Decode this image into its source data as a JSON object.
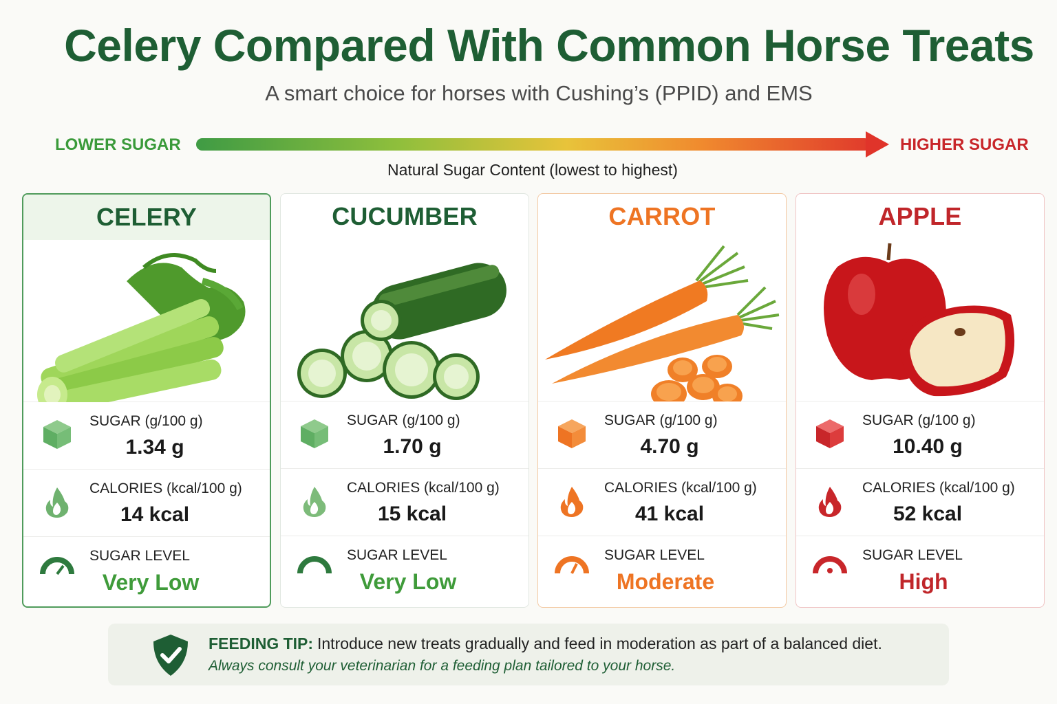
{
  "header": {
    "title": "Celery Compared With Common Horse Treats",
    "subtitle": "A smart choice for horses with Cushing’s (PPID) and EMS"
  },
  "scale": {
    "low_label": "LOWER SUGAR",
    "high_label": "HIGHER SUGAR",
    "caption": "Natural Sugar Content (lowest to highest)",
    "colors": {
      "low": "#3f9b44",
      "high": "#e0342a"
    }
  },
  "cards": [
    {
      "name": "CELERY",
      "icon": "celery-illustration",
      "sugar_label": "SUGAR (g/100 g)",
      "sugar_value": "1.34 g",
      "calories_label": "CALORIES (kcal/100 g)",
      "calories_value": "14 kcal",
      "level_label": "SUGAR LEVEL",
      "level_value": "Very Low",
      "accent": "#6aaa6a"
    },
    {
      "name": "CUCUMBER",
      "icon": "cucumber-illustration",
      "sugar_label": "SUGAR (g/100 g)",
      "sugar_value": "1.70 g",
      "calories_label": "CALORIES (kcal/100 g)",
      "calories_value": "15 kcal",
      "level_label": "SUGAR LEVEL",
      "level_value": "Very Low",
      "accent": "#6aaa6a"
    },
    {
      "name": "CARROT",
      "icon": "carrot-illustration",
      "sugar_label": "SUGAR (g/100 g)",
      "sugar_value": "4.70 g",
      "calories_label": "CALORIES (kcal/100 g)",
      "calories_value": "41 kcal",
      "level_label": "SUGAR LEVEL",
      "level_value": "Moderate",
      "accent": "#ee7423"
    },
    {
      "name": "APPLE",
      "icon": "apple-illustration",
      "sugar_label": "SUGAR (g/100 g)",
      "sugar_value": "10.40 g",
      "calories_label": "CALORIES (kcal/100 g)",
      "calories_value": "52 kcal",
      "level_label": "SUGAR LEVEL",
      "level_value": "High",
      "accent": "#d0282c"
    }
  ],
  "tip": {
    "label": "FEEDING TIP:",
    "text": "Introduce new treats gradually and feed in moderation as part of a balanced diet.",
    "note": "Always consult your veterinarian for a feeding plan tailored to your horse.",
    "icon": "shield-check-icon"
  }
}
